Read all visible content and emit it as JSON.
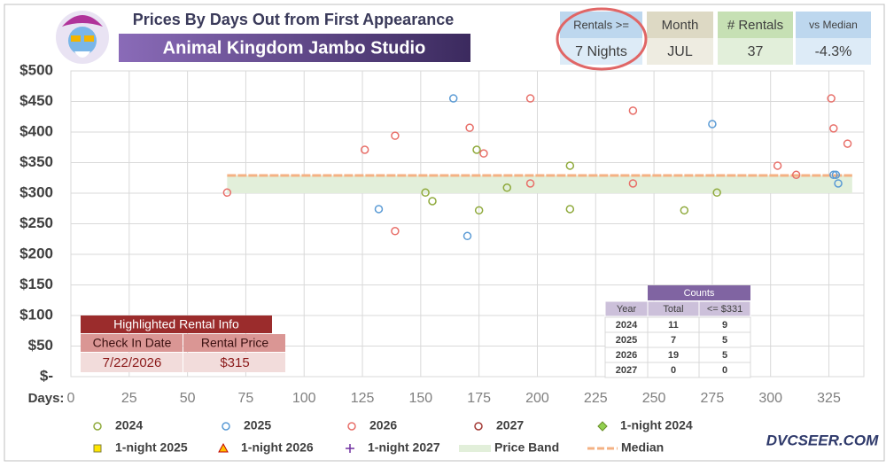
{
  "header": {
    "title": "Prices By Days Out from First Appearance",
    "resort": "Animal Kingdom Jambo Studio"
  },
  "stats": [
    {
      "label": "Rentals >=",
      "value": "7 Nights"
    },
    {
      "label": "Month",
      "value": "JUL"
    },
    {
      "label": "# Rentals",
      "value": "37"
    },
    {
      "label": "vs Median",
      "value": "-4.3%"
    }
  ],
  "highlight": {
    "title": "Highlighted Rental Info",
    "columns": [
      "Check In Date",
      "Rental Price"
    ],
    "values": [
      "7/22/2026",
      "$315"
    ]
  },
  "counts": {
    "title": "Counts",
    "columns": [
      "Year",
      "Total",
      "<= $331"
    ],
    "rows": [
      [
        "2024",
        "11",
        "9"
      ],
      [
        "2025",
        "7",
        "5"
      ],
      [
        "2026",
        "19",
        "5"
      ],
      [
        "2027",
        "0",
        "0"
      ]
    ]
  },
  "watermark": "DVCSEER.COM",
  "chart_data": {
    "type": "scatter",
    "x_label": "Days:",
    "xlim": [
      0,
      340
    ],
    "xticks": [
      0,
      25,
      50,
      75,
      100,
      125,
      150,
      175,
      200,
      225,
      250,
      275,
      300,
      325
    ],
    "ylim": [
      0,
      500
    ],
    "yticks": [
      {
        "value": 0,
        "label": "$-"
      },
      {
        "value": 50,
        "label": "$50"
      },
      {
        "value": 100,
        "label": "$100"
      },
      {
        "value": 150,
        "label": "$150"
      },
      {
        "value": 200,
        "label": "$200"
      },
      {
        "value": 250,
        "label": "$250"
      },
      {
        "value": 300,
        "label": "$300"
      },
      {
        "value": 350,
        "label": "$350"
      },
      {
        "value": 400,
        "label": "$400"
      },
      {
        "value": 450,
        "label": "$450"
      },
      {
        "value": 500,
        "label": "$500"
      }
    ],
    "grid": true,
    "price_band": {
      "name": "Price Band",
      "low": 300,
      "high": 329,
      "x": [
        67,
        335
      ],
      "color": "#e2efda"
    },
    "median": {
      "name": "Median",
      "value": 329,
      "x": [
        67,
        335
      ],
      "color": "#f4b183"
    },
    "series": [
      {
        "name": "2024",
        "color": "#8faa3c",
        "marker": "circle",
        "x": [
          174,
          214,
          152,
          155,
          187,
          175,
          214,
          263,
          277
        ],
        "values": [
          371,
          345,
          301,
          287,
          309,
          272,
          274,
          272,
          301
        ]
      },
      {
        "name": "2025",
        "color": "#5b9bd5",
        "marker": "circle",
        "x": [
          164,
          132,
          170,
          275,
          327,
          328,
          329
        ],
        "values": [
          455,
          274,
          230,
          413,
          330,
          330,
          316
        ]
      },
      {
        "name": "2026",
        "color": "#e8706a",
        "marker": "circle",
        "x": [
          67,
          197,
          197,
          241,
          241,
          303,
          311,
          326,
          327,
          333,
          126,
          139,
          171,
          177,
          139
        ],
        "values": [
          301,
          455,
          316,
          435,
          316,
          345,
          330,
          455,
          406,
          381,
          371,
          394,
          407,
          365,
          238
        ]
      },
      {
        "name": "2027",
        "color": "#a33a36",
        "marker": "circle",
        "x": [],
        "values": []
      },
      {
        "name": "1-night 2024",
        "color": "#92d050",
        "marker": "diamond",
        "x": [],
        "values": []
      },
      {
        "name": "1-night 2025",
        "color": "#ffe600",
        "marker": "square",
        "x": [],
        "values": []
      },
      {
        "name": "1-night 2026",
        "color": "#ffc000",
        "marker": "triangle",
        "x": [],
        "values": []
      },
      {
        "name": "1-night 2027",
        "color": "#7030a0",
        "marker": "plus",
        "x": [],
        "values": []
      }
    ]
  }
}
